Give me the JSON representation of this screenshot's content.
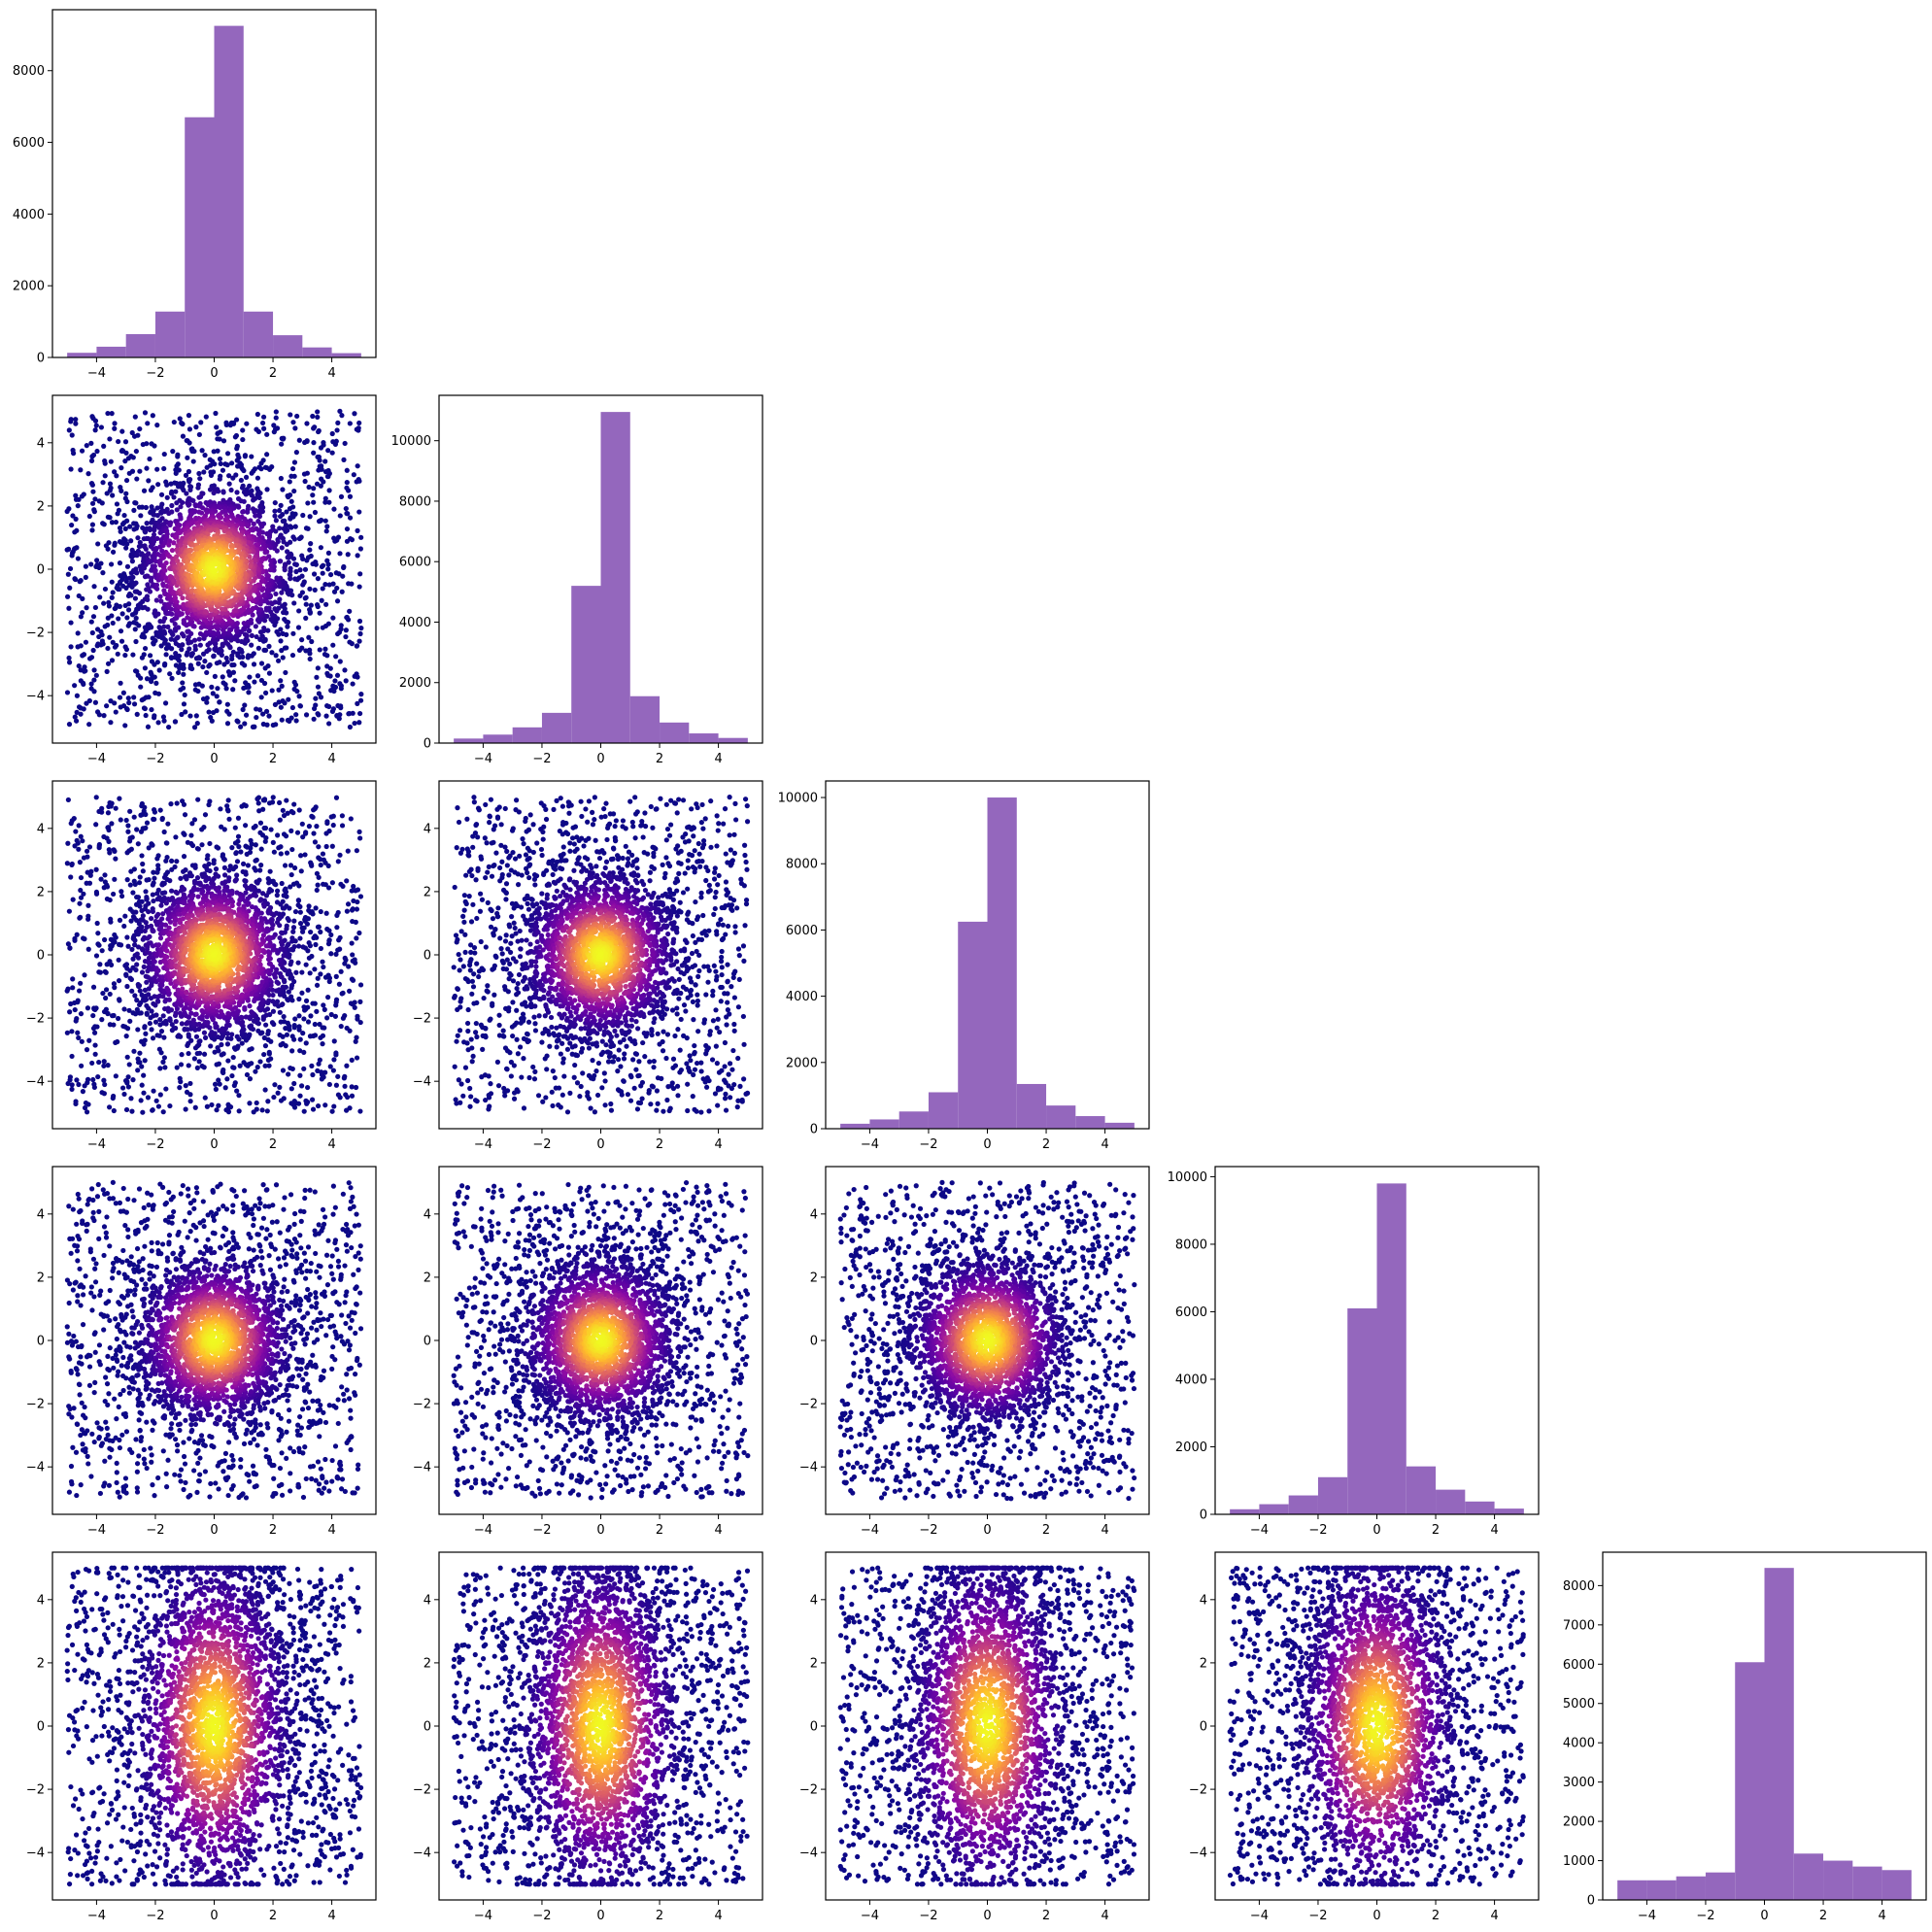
{
  "chart_data": {
    "type": "corner-plot",
    "n_vars": 5,
    "bin_edges": [
      -5,
      -4,
      -3,
      -2,
      -1,
      0,
      1,
      2,
      3,
      4,
      5
    ],
    "x_ticks": [
      -4,
      -2,
      0,
      2,
      4
    ],
    "x_tick_labels": [
      "−4",
      "−2",
      "0",
      "2",
      "4"
    ],
    "y_ticks_scatter": [
      -4,
      -2,
      0,
      2,
      4
    ],
    "y_tick_labels_scatter": [
      "−4",
      "−2",
      "0",
      "2",
      "4"
    ],
    "xlim": [
      -5.5,
      5.5
    ],
    "ylim_scatter": [
      -5.5,
      5.5
    ],
    "hist_color": "#9467bd",
    "scatter_colormap": "plasma",
    "grid": false,
    "histograms": [
      {
        "index": 0,
        "counts": [
          130,
          300,
          650,
          1280,
          6700,
          9250,
          1280,
          620,
          280,
          120
        ],
        "ylim": [
          0,
          9700
        ],
        "y_ticks": [
          0,
          2000,
          4000,
          6000,
          8000
        ],
        "y_tick_labels": [
          "0",
          "2000",
          "4000",
          "6000",
          "8000"
        ]
      },
      {
        "index": 1,
        "counts": [
          150,
          280,
          520,
          1000,
          5200,
          10950,
          1550,
          680,
          320,
          170
        ],
        "ylim": [
          0,
          11500
        ],
        "y_ticks": [
          0,
          2000,
          4000,
          6000,
          8000,
          10000
        ],
        "y_tick_labels": [
          "0",
          "2000",
          "4000",
          "6000",
          "8000",
          "10000"
        ]
      },
      {
        "index": 2,
        "counts": [
          150,
          280,
          520,
          1100,
          6250,
          10000,
          1350,
          700,
          380,
          180
        ],
        "ylim": [
          0,
          10500
        ],
        "y_ticks": [
          0,
          2000,
          4000,
          6000,
          8000,
          10000
        ],
        "y_tick_labels": [
          "0",
          "2000",
          "4000",
          "6000",
          "8000",
          "10000"
        ]
      },
      {
        "index": 3,
        "counts": [
          150,
          300,
          560,
          1100,
          6100,
          9800,
          1420,
          730,
          380,
          170
        ],
        "ylim": [
          0,
          10300
        ],
        "y_ticks": [
          0,
          2000,
          4000,
          6000,
          8000,
          10000
        ],
        "y_tick_labels": [
          "0",
          "2000",
          "4000",
          "6000",
          "8000",
          "10000"
        ]
      },
      {
        "index": 4,
        "counts": [
          500,
          500,
          600,
          700,
          6050,
          8450,
          1180,
          1000,
          850,
          760
        ],
        "ylim": [
          0,
          8850
        ],
        "y_ticks": [
          0,
          1000,
          2000,
          3000,
          4000,
          5000,
          6000,
          7000,
          8000
        ],
        "y_tick_labels": [
          "0",
          "1000",
          "2000",
          "3000",
          "4000",
          "5000",
          "6000",
          "7000",
          "8000"
        ]
      }
    ],
    "scatter_pairs": [
      {
        "row": 1,
        "col": 0,
        "point_count": 15000,
        "x_range": [
          -5,
          5
        ],
        "y_range": [
          -5,
          5
        ]
      },
      {
        "row": 2,
        "col": 0,
        "point_count": 15000,
        "x_range": [
          -5,
          5
        ],
        "y_range": [
          -5,
          5
        ]
      },
      {
        "row": 2,
        "col": 1,
        "point_count": 15000,
        "x_range": [
          -5,
          5
        ],
        "y_range": [
          -5,
          5
        ]
      },
      {
        "row": 3,
        "col": 0,
        "point_count": 15000,
        "x_range": [
          -5,
          5
        ],
        "y_range": [
          -5,
          5
        ]
      },
      {
        "row": 3,
        "col": 1,
        "point_count": 15000,
        "x_range": [
          -5,
          5
        ],
        "y_range": [
          -5,
          5
        ]
      },
      {
        "row": 3,
        "col": 2,
        "point_count": 15000,
        "x_range": [
          -5,
          5
        ],
        "y_range": [
          -5,
          5
        ]
      },
      {
        "row": 4,
        "col": 0,
        "point_count": 15000,
        "x_range": [
          -5,
          5
        ],
        "y_range": [
          -5,
          5
        ]
      },
      {
        "row": 4,
        "col": 1,
        "point_count": 15000,
        "x_range": [
          -5,
          5
        ],
        "y_range": [
          -5,
          5
        ]
      },
      {
        "row": 4,
        "col": 2,
        "point_count": 15000,
        "x_range": [
          -5,
          5
        ],
        "y_range": [
          -5,
          5
        ]
      },
      {
        "row": 4,
        "col": 3,
        "point_count": 15000,
        "x_range": [
          -5,
          5
        ],
        "y_range": [
          -5,
          5
        ]
      }
    ]
  }
}
